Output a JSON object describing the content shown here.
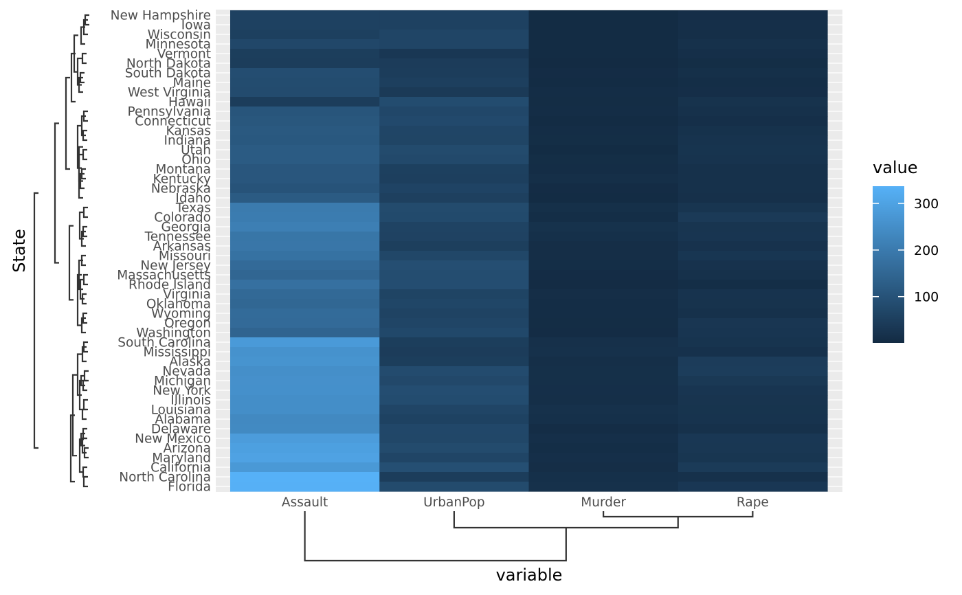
{
  "chart_data": {
    "type": "heatmap",
    "xlabel": "variable",
    "ylabel": "State",
    "x_categories": [
      "Assault",
      "UrbanPop",
      "Murder",
      "Rape"
    ],
    "y_categories": [
      "New Hampshire",
      "Iowa",
      "Wisconsin",
      "Minnesota",
      "Vermont",
      "North Dakota",
      "South Dakota",
      "Maine",
      "West Virginia",
      "Hawaii",
      "Pennsylvania",
      "Connecticut",
      "Kansas",
      "Indiana",
      "Utah",
      "Ohio",
      "Montana",
      "Kentucky",
      "Nebraska",
      "Idaho",
      "Texas",
      "Colorado",
      "Georgia",
      "Tennessee",
      "Arkansas",
      "Missouri",
      "New Jersey",
      "Massachusetts",
      "Rhode Island",
      "Virginia",
      "Oklahoma",
      "Wyoming",
      "Oregon",
      "Washington",
      "South Carolina",
      "Mississippi",
      "Alaska",
      "Nevada",
      "Michigan",
      "New York",
      "Illinois",
      "Louisiana",
      "Alabama",
      "Delaware",
      "New Mexico",
      "Arizona",
      "Maryland",
      "California",
      "North Carolina",
      "Florida"
    ],
    "values": [
      [
        57,
        56,
        2.1,
        9.5
      ],
      [
        56,
        57,
        2.2,
        11.3
      ],
      [
        53,
        66,
        2.6,
        10.8
      ],
      [
        72,
        66,
        2.7,
        14.9
      ],
      [
        48,
        32,
        2.2,
        11.2
      ],
      [
        45,
        44,
        0.8,
        7.3
      ],
      [
        86,
        45,
        3.8,
        12.8
      ],
      [
        83,
        51,
        2.1,
        7.8
      ],
      [
        81,
        39,
        5.7,
        9.3
      ],
      [
        46,
        83,
        5.3,
        20.2
      ],
      [
        106,
        72,
        6.3,
        14.9
      ],
      [
        110,
        77,
        3.3,
        11.1
      ],
      [
        115,
        66,
        6.0,
        18.0
      ],
      [
        113,
        65,
        7.2,
        21.0
      ],
      [
        120,
        80,
        3.2,
        22.9
      ],
      [
        120,
        75,
        7.3,
        21.4
      ],
      [
        109,
        53,
        6.0,
        16.4
      ],
      [
        109,
        52,
        9.7,
        16.3
      ],
      [
        102,
        62,
        4.3,
        16.5
      ],
      [
        120,
        54,
        2.6,
        14.2
      ],
      [
        201,
        80,
        12.7,
        25.5
      ],
      [
        204,
        78,
        7.9,
        38.7
      ],
      [
        211,
        60,
        17.4,
        25.8
      ],
      [
        188,
        59,
        13.2,
        26.9
      ],
      [
        190,
        50,
        8.8,
        19.5
      ],
      [
        178,
        70,
        9.0,
        28.2
      ],
      [
        159,
        89,
        7.4,
        18.8
      ],
      [
        149,
        85,
        4.4,
        16.3
      ],
      [
        174,
        87,
        3.4,
        8.3
      ],
      [
        156,
        63,
        8.5,
        20.7
      ],
      [
        151,
        68,
        6.6,
        20.0
      ],
      [
        161,
        60,
        6.8,
        15.6
      ],
      [
        159,
        67,
        4.9,
        29.3
      ],
      [
        145,
        73,
        4.0,
        26.2
      ],
      [
        279,
        48,
        14.4,
        22.5
      ],
      [
        259,
        44,
        16.1,
        17.1
      ],
      [
        263,
        48,
        10.0,
        44.5
      ],
      [
        252,
        81,
        12.2,
        46.0
      ],
      [
        255,
        74,
        12.1,
        35.1
      ],
      [
        254,
        86,
        11.1,
        26.1
      ],
      [
        249,
        83,
        10.4,
        24.0
      ],
      [
        249,
        66,
        15.4,
        22.2
      ],
      [
        236,
        58,
        13.2,
        21.2
      ],
      [
        238,
        72,
        5.9,
        15.8
      ],
      [
        285,
        70,
        11.4,
        32.1
      ],
      [
        294,
        80,
        8.1,
        31.0
      ],
      [
        300,
        67,
        11.3,
        27.8
      ],
      [
        276,
        91,
        9.0,
        40.6
      ],
      [
        337,
        45,
        13.0,
        16.1
      ],
      [
        335,
        80,
        15.4,
        31.9
      ]
    ],
    "color_scale": {
      "min": 0.8,
      "max": 337,
      "low": "#132b43",
      "high": "#56b1f7"
    },
    "legend": {
      "title": "value",
      "ticks": [
        100,
        200,
        300
      ],
      "placement": "right"
    }
  }
}
